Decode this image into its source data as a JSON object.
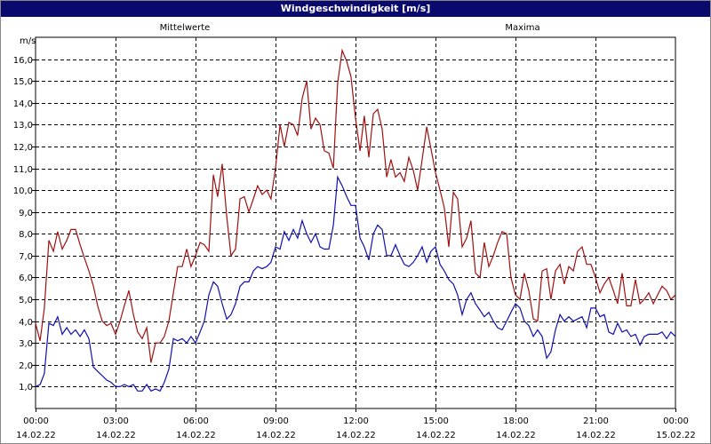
{
  "window": {
    "title": "Windgeschwindigkeit [m/s]"
  },
  "chart_data": {
    "type": "line",
    "title": "Windgeschwindigkeit [m/s]",
    "ylabel": "m/s",
    "ylim": [
      0,
      17
    ],
    "grid": true,
    "legend_placement": "top",
    "yticks": [
      {
        "value": 1,
        "label": "1,0"
      },
      {
        "value": 2,
        "label": "2,0"
      },
      {
        "value": 3,
        "label": "3,0"
      },
      {
        "value": 4,
        "label": "4,0"
      },
      {
        "value": 5,
        "label": "5,0"
      },
      {
        "value": 6,
        "label": "6,0"
      },
      {
        "value": 7,
        "label": "7,0"
      },
      {
        "value": 8,
        "label": "8,0"
      },
      {
        "value": 9,
        "label": "9,0"
      },
      {
        "value": 10,
        "label": "10,0"
      },
      {
        "value": 11,
        "label": "11,0"
      },
      {
        "value": 12,
        "label": "12,0"
      },
      {
        "value": 13,
        "label": "13,0"
      },
      {
        "value": 14,
        "label": "14,0"
      },
      {
        "value": 15,
        "label": "15,0"
      },
      {
        "value": 16,
        "label": "16,0"
      }
    ],
    "xticks": [
      {
        "hours": 0,
        "time": "00:00",
        "date": "14.02.22"
      },
      {
        "hours": 3,
        "time": "03:00",
        "date": "14.02.22"
      },
      {
        "hours": 6,
        "time": "06:00",
        "date": "14.02.22"
      },
      {
        "hours": 9,
        "time": "09:00",
        "date": "14.02.22"
      },
      {
        "hours": 12,
        "time": "12:00",
        "date": "14.02.22"
      },
      {
        "hours": 15,
        "time": "15:00",
        "date": "14.02.22"
      },
      {
        "hours": 18,
        "time": "18:00",
        "date": "14.02.22"
      },
      {
        "hours": 21,
        "time": "21:00",
        "date": "14.02.22"
      },
      {
        "hours": 24,
        "time": "00:00",
        "date": "15.02.22"
      }
    ],
    "colors": {
      "mittel": "#1010b0",
      "maxima": "#a01010",
      "grid": "#000000"
    },
    "series": [
      {
        "name": "Mittelwerte",
        "points": [
          [
            0,
            1.0
          ],
          [
            0.17,
            1.1
          ],
          [
            0.33,
            1.6
          ],
          [
            0.5,
            3.9
          ],
          [
            0.67,
            3.8
          ],
          [
            0.83,
            4.2
          ],
          [
            1.0,
            3.4
          ],
          [
            1.17,
            3.7
          ],
          [
            1.33,
            3.4
          ],
          [
            1.5,
            3.6
          ],
          [
            1.67,
            3.3
          ],
          [
            1.83,
            3.6
          ],
          [
            2.0,
            3.2
          ],
          [
            2.17,
            1.9
          ],
          [
            2.33,
            1.7
          ],
          [
            2.5,
            1.5
          ],
          [
            2.67,
            1.3
          ],
          [
            2.83,
            1.2
          ],
          [
            3.0,
            1.0
          ],
          [
            3.17,
            1.0
          ],
          [
            3.33,
            1.1
          ],
          [
            3.5,
            1.0
          ],
          [
            3.67,
            1.1
          ],
          [
            3.83,
            0.8
          ],
          [
            4.0,
            0.8
          ],
          [
            4.17,
            1.1
          ],
          [
            4.33,
            0.8
          ],
          [
            4.5,
            0.9
          ],
          [
            4.67,
            0.8
          ],
          [
            4.83,
            1.2
          ],
          [
            5.0,
            1.8
          ],
          [
            5.17,
            3.2
          ],
          [
            5.33,
            3.1
          ],
          [
            5.5,
            3.2
          ],
          [
            5.67,
            3.0
          ],
          [
            5.83,
            3.3
          ],
          [
            6.0,
            3.0
          ],
          [
            6.17,
            3.5
          ],
          [
            6.33,
            4.0
          ],
          [
            6.5,
            5.2
          ],
          [
            6.67,
            5.8
          ],
          [
            6.83,
            5.6
          ],
          [
            7.0,
            4.8
          ],
          [
            7.17,
            4.1
          ],
          [
            7.33,
            4.3
          ],
          [
            7.5,
            4.8
          ],
          [
            7.67,
            5.6
          ],
          [
            7.83,
            5.8
          ],
          [
            8.0,
            5.8
          ],
          [
            8.17,
            6.3
          ],
          [
            8.33,
            6.5
          ],
          [
            8.5,
            6.4
          ],
          [
            8.67,
            6.5
          ],
          [
            8.83,
            6.7
          ],
          [
            9.0,
            7.4
          ],
          [
            9.17,
            7.3
          ],
          [
            9.33,
            8.1
          ],
          [
            9.5,
            7.7
          ],
          [
            9.67,
            8.2
          ],
          [
            9.83,
            7.8
          ],
          [
            10.0,
            8.6
          ],
          [
            10.17,
            8.0
          ],
          [
            10.33,
            7.6
          ],
          [
            10.5,
            8.0
          ],
          [
            10.67,
            7.4
          ],
          [
            10.83,
            7.3
          ],
          [
            11.0,
            7.3
          ],
          [
            11.17,
            8.4
          ],
          [
            11.33,
            10.6
          ],
          [
            11.5,
            10.2
          ],
          [
            11.67,
            9.7
          ],
          [
            11.83,
            9.3
          ],
          [
            12.0,
            9.3
          ],
          [
            12.17,
            7.8
          ],
          [
            12.33,
            7.4
          ],
          [
            12.5,
            6.8
          ],
          [
            12.67,
            8.0
          ],
          [
            12.83,
            8.4
          ],
          [
            13.0,
            8.2
          ],
          [
            13.17,
            7.0
          ],
          [
            13.33,
            7.0
          ],
          [
            13.5,
            7.5
          ],
          [
            13.67,
            7.0
          ],
          [
            13.83,
            6.6
          ],
          [
            14.0,
            6.5
          ],
          [
            14.17,
            6.7
          ],
          [
            14.33,
            7.0
          ],
          [
            14.5,
            7.4
          ],
          [
            14.67,
            6.7
          ],
          [
            14.83,
            7.2
          ],
          [
            15.0,
            7.4
          ],
          [
            15.17,
            6.6
          ],
          [
            15.33,
            6.3
          ],
          [
            15.5,
            5.9
          ],
          [
            15.67,
            5.7
          ],
          [
            15.83,
            5.2
          ],
          [
            16.0,
            4.3
          ],
          [
            16.17,
            5.0
          ],
          [
            16.33,
            5.3
          ],
          [
            16.5,
            4.8
          ],
          [
            16.67,
            4.5
          ],
          [
            16.83,
            4.2
          ],
          [
            17.0,
            4.4
          ],
          [
            17.17,
            4.0
          ],
          [
            17.33,
            3.7
          ],
          [
            17.5,
            3.6
          ],
          [
            17.67,
            4.0
          ],
          [
            17.83,
            4.4
          ],
          [
            18.0,
            4.8
          ],
          [
            18.17,
            4.6
          ],
          [
            18.33,
            4.0
          ],
          [
            18.5,
            3.8
          ],
          [
            18.67,
            3.3
          ],
          [
            18.83,
            3.6
          ],
          [
            19.0,
            3.3
          ],
          [
            19.17,
            2.3
          ],
          [
            19.33,
            2.6
          ],
          [
            19.5,
            3.6
          ],
          [
            19.67,
            4.3
          ],
          [
            19.83,
            4.0
          ],
          [
            20.0,
            4.2
          ],
          [
            20.17,
            4.0
          ],
          [
            20.33,
            4.1
          ],
          [
            20.5,
            4.2
          ],
          [
            20.67,
            3.7
          ],
          [
            20.83,
            4.6
          ],
          [
            21.0,
            4.6
          ],
          [
            21.17,
            4.2
          ],
          [
            21.33,
            4.3
          ],
          [
            21.5,
            3.5
          ],
          [
            21.67,
            3.4
          ],
          [
            21.83,
            3.9
          ],
          [
            22.0,
            3.5
          ],
          [
            22.17,
            3.6
          ],
          [
            22.33,
            3.3
          ],
          [
            22.5,
            3.4
          ],
          [
            22.67,
            2.9
          ],
          [
            22.83,
            3.3
          ],
          [
            23.0,
            3.4
          ],
          [
            23.17,
            3.4
          ],
          [
            23.33,
            3.4
          ],
          [
            23.5,
            3.5
          ],
          [
            23.67,
            3.2
          ],
          [
            23.83,
            3.5
          ],
          [
            24.0,
            3.3
          ]
        ]
      },
      {
        "name": "Maxima",
        "points": [
          [
            0,
            3.9
          ],
          [
            0.17,
            3.1
          ],
          [
            0.33,
            4.6
          ],
          [
            0.5,
            7.7
          ],
          [
            0.67,
            7.2
          ],
          [
            0.83,
            8.1
          ],
          [
            1.0,
            7.3
          ],
          [
            1.17,
            7.7
          ],
          [
            1.33,
            8.2
          ],
          [
            1.5,
            8.2
          ],
          [
            1.67,
            7.5
          ],
          [
            1.83,
            6.9
          ],
          [
            2.0,
            6.3
          ],
          [
            2.17,
            5.6
          ],
          [
            2.33,
            4.7
          ],
          [
            2.5,
            4.0
          ],
          [
            2.67,
            3.8
          ],
          [
            2.83,
            3.9
          ],
          [
            3.0,
            3.4
          ],
          [
            3.17,
            4.0
          ],
          [
            3.33,
            4.7
          ],
          [
            3.5,
            5.4
          ],
          [
            3.67,
            4.3
          ],
          [
            3.83,
            3.5
          ],
          [
            4.0,
            3.2
          ],
          [
            4.17,
            3.7
          ],
          [
            4.33,
            2.1
          ],
          [
            4.5,
            3.0
          ],
          [
            4.67,
            3.0
          ],
          [
            4.83,
            3.3
          ],
          [
            5.0,
            4.0
          ],
          [
            5.17,
            5.3
          ],
          [
            5.33,
            6.5
          ],
          [
            5.5,
            6.5
          ],
          [
            5.67,
            7.3
          ],
          [
            5.83,
            6.5
          ],
          [
            6.0,
            7.0
          ],
          [
            6.17,
            7.6
          ],
          [
            6.33,
            7.5
          ],
          [
            6.5,
            7.2
          ],
          [
            6.67,
            10.7
          ],
          [
            6.83,
            9.7
          ],
          [
            7.0,
            11.2
          ],
          [
            7.17,
            8.8
          ],
          [
            7.33,
            7.0
          ],
          [
            7.5,
            7.3
          ],
          [
            7.67,
            9.6
          ],
          [
            7.83,
            9.7
          ],
          [
            8.0,
            9.0
          ],
          [
            8.17,
            9.6
          ],
          [
            8.33,
            10.2
          ],
          [
            8.5,
            9.8
          ],
          [
            8.67,
            10.0
          ],
          [
            8.83,
            9.6
          ],
          [
            9.0,
            11.0
          ],
          [
            9.17,
            13.0
          ],
          [
            9.33,
            12.0
          ],
          [
            9.5,
            13.1
          ],
          [
            9.67,
            13.0
          ],
          [
            9.83,
            12.5
          ],
          [
            10.0,
            14.2
          ],
          [
            10.17,
            15.0
          ],
          [
            10.33,
            12.8
          ],
          [
            10.5,
            13.3
          ],
          [
            10.67,
            13.0
          ],
          [
            10.83,
            11.8
          ],
          [
            11.0,
            11.7
          ],
          [
            11.17,
            11.0
          ],
          [
            11.33,
            14.9
          ],
          [
            11.5,
            16.4
          ],
          [
            11.67,
            15.9
          ],
          [
            11.83,
            15.2
          ],
          [
            12.0,
            13.3
          ],
          [
            12.17,
            11.8
          ],
          [
            12.33,
            13.4
          ],
          [
            12.5,
            11.5
          ],
          [
            12.67,
            13.5
          ],
          [
            12.83,
            13.7
          ],
          [
            13.0,
            12.8
          ],
          [
            13.17,
            10.6
          ],
          [
            13.33,
            11.4
          ],
          [
            13.5,
            10.6
          ],
          [
            13.67,
            10.8
          ],
          [
            13.83,
            10.4
          ],
          [
            14.0,
            11.5
          ],
          [
            14.17,
            10.9
          ],
          [
            14.33,
            10.0
          ],
          [
            14.5,
            11.4
          ],
          [
            14.67,
            12.9
          ],
          [
            14.83,
            11.9
          ],
          [
            15.0,
            10.8
          ],
          [
            15.17,
            10.0
          ],
          [
            15.33,
            9.2
          ],
          [
            15.5,
            7.4
          ],
          [
            15.67,
            9.9
          ],
          [
            15.83,
            9.6
          ],
          [
            16.0,
            7.4
          ],
          [
            16.17,
            7.8
          ],
          [
            16.33,
            8.6
          ],
          [
            16.5,
            6.2
          ],
          [
            16.67,
            6.0
          ],
          [
            16.83,
            7.6
          ],
          [
            17.0,
            6.5
          ],
          [
            17.17,
            7.0
          ],
          [
            17.33,
            7.6
          ],
          [
            17.5,
            8.1
          ],
          [
            17.67,
            8.0
          ],
          [
            17.83,
            6.0
          ],
          [
            18.0,
            5.2
          ],
          [
            18.17,
            5.0
          ],
          [
            18.33,
            6.2
          ],
          [
            18.5,
            5.4
          ],
          [
            18.67,
            4.1
          ],
          [
            18.83,
            4.0
          ],
          [
            19.0,
            6.3
          ],
          [
            19.17,
            6.4
          ],
          [
            19.33,
            5.0
          ],
          [
            19.5,
            6.3
          ],
          [
            19.67,
            6.6
          ],
          [
            19.83,
            5.7
          ],
          [
            20.0,
            6.5
          ],
          [
            20.17,
            6.3
          ],
          [
            20.33,
            7.2
          ],
          [
            20.5,
            7.4
          ],
          [
            20.67,
            6.6
          ],
          [
            20.83,
            6.6
          ],
          [
            21.0,
            6.0
          ],
          [
            21.17,
            5.3
          ],
          [
            21.33,
            5.7
          ],
          [
            21.5,
            6.0
          ],
          [
            21.67,
            5.4
          ],
          [
            21.83,
            4.8
          ],
          [
            22.0,
            6.2
          ],
          [
            22.17,
            4.7
          ],
          [
            22.33,
            4.7
          ],
          [
            22.5,
            5.9
          ],
          [
            22.67,
            4.8
          ],
          [
            22.83,
            5.0
          ],
          [
            23.0,
            5.3
          ],
          [
            23.17,
            4.8
          ],
          [
            23.33,
            5.2
          ],
          [
            23.5,
            5.6
          ],
          [
            23.67,
            5.4
          ],
          [
            23.83,
            5.0
          ],
          [
            24.0,
            5.2
          ]
        ]
      }
    ]
  }
}
